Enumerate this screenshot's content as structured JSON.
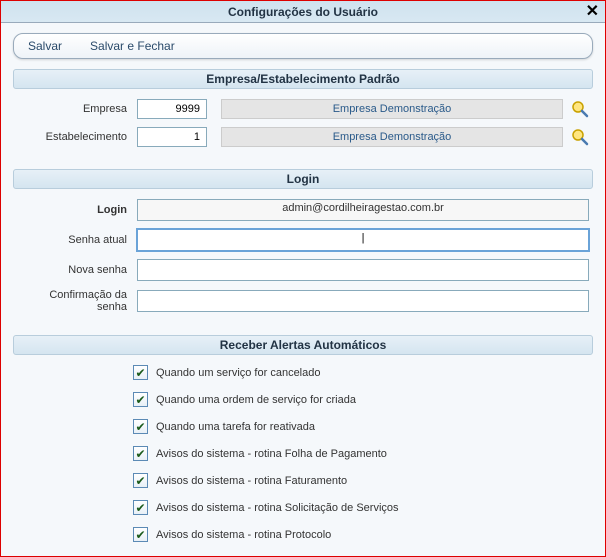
{
  "window": {
    "title": "Configurações do Usuário"
  },
  "toolbar": {
    "save": "Salvar",
    "save_close": "Salvar e Fechar"
  },
  "sections": {
    "empresa": "Empresa/Estabelecimento Padrão",
    "login": "Login",
    "alerts": "Receber Alertas Automáticos"
  },
  "empresa": {
    "empresa_label": "Empresa",
    "empresa_value": "9999",
    "empresa_display": "Empresa Demonstração",
    "estab_label": "Estabelecimento",
    "estab_value": "1",
    "estab_display": "Empresa Demonstração"
  },
  "login": {
    "login_label": "Login",
    "login_value": "admin@cordilheiragestao.com.br",
    "senha_atual_label": "Senha atual",
    "senha_atual_value": "|",
    "nova_senha_label": "Nova senha",
    "conf_senha_label": "Confirmação da senha"
  },
  "alerts": [
    {
      "label": "Quando um serviço for cancelado",
      "checked": true
    },
    {
      "label": "Quando uma ordem de serviço for criada",
      "checked": true
    },
    {
      "label": "Quando uma tarefa for reativada",
      "checked": true
    },
    {
      "label": "Avisos do sistema - rotina Folha de Pagamento",
      "checked": true
    },
    {
      "label": "Avisos do sistema - rotina Faturamento",
      "checked": true
    },
    {
      "label": "Avisos do sistema - rotina Solicitação de Serviços",
      "checked": true
    },
    {
      "label": "Avisos do sistema - rotina Protocolo",
      "checked": true
    }
  ],
  "colors": {
    "accent": "#cfe2ef",
    "border": "#9ab",
    "link": "#2a5a8a"
  }
}
